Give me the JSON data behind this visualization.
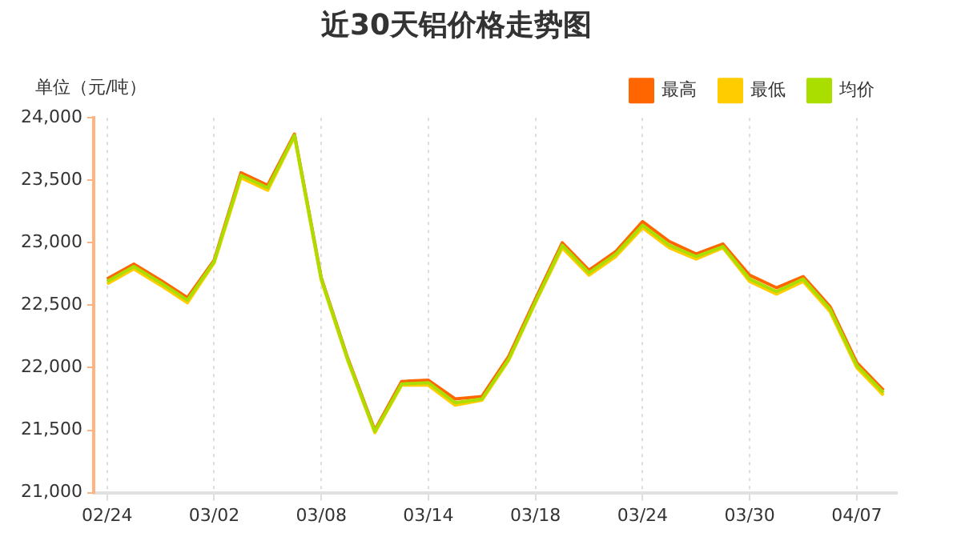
{
  "chart_data": {
    "type": "line",
    "title": "近30天铝价格走势图",
    "ylabel": "单位（元/吨）",
    "categories": [
      "02/24",
      null,
      null,
      null,
      "03/02",
      null,
      null,
      null,
      "03/08",
      null,
      null,
      null,
      "03/14",
      null,
      null,
      null,
      "03/18",
      null,
      null,
      null,
      "03/24",
      null,
      null,
      null,
      "03/30",
      null,
      null,
      null,
      "04/07",
      null
    ],
    "series": [
      {
        "name": "最高",
        "color": "#ff6600",
        "values": [
          22710,
          22830,
          22700,
          22560,
          22860,
          23560,
          23460,
          23870,
          22720,
          22070,
          21500,
          21890,
          21900,
          21750,
          21770,
          22090,
          22550,
          23000,
          22780,
          22930,
          23170,
          23010,
          22910,
          22990,
          22740,
          22640,
          22730,
          22490,
          22040,
          21820
        ]
      },
      {
        "name": "最低",
        "color": "#ffcc00",
        "values": [
          22670,
          22790,
          22660,
          22520,
          22840,
          23520,
          23420,
          23850,
          22700,
          22050,
          21480,
          21860,
          21860,
          21700,
          21740,
          22060,
          22520,
          22960,
          22740,
          22890,
          23120,
          22960,
          22870,
          22960,
          22690,
          22590,
          22690,
          22450,
          22000,
          21780
        ]
      },
      {
        "name": "均价",
        "color": "#aadd00",
        "values": [
          22690,
          22810,
          22680,
          22540,
          22850,
          23540,
          23440,
          23860,
          22710,
          22060,
          21490,
          21870,
          21880,
          21720,
          21750,
          22070,
          22530,
          22980,
          22760,
          22910,
          23140,
          22980,
          22890,
          22970,
          22710,
          22610,
          22710,
          22470,
          22020,
          21800
        ]
      }
    ],
    "ylim": [
      21000,
      24000
    ],
    "yticks": [
      {
        "value": 21000,
        "label": "21,000"
      },
      {
        "value": 21500,
        "label": "21,500"
      },
      {
        "value": 22000,
        "label": "22,000"
      },
      {
        "value": 22500,
        "label": "22,500"
      },
      {
        "value": 23000,
        "label": "23,000"
      },
      {
        "value": 23500,
        "label": "23,500"
      },
      {
        "value": 24000,
        "label": "24,000"
      }
    ],
    "grid": "x",
    "legend": "top right",
    "marker": "none",
    "line_style": "solid"
  }
}
